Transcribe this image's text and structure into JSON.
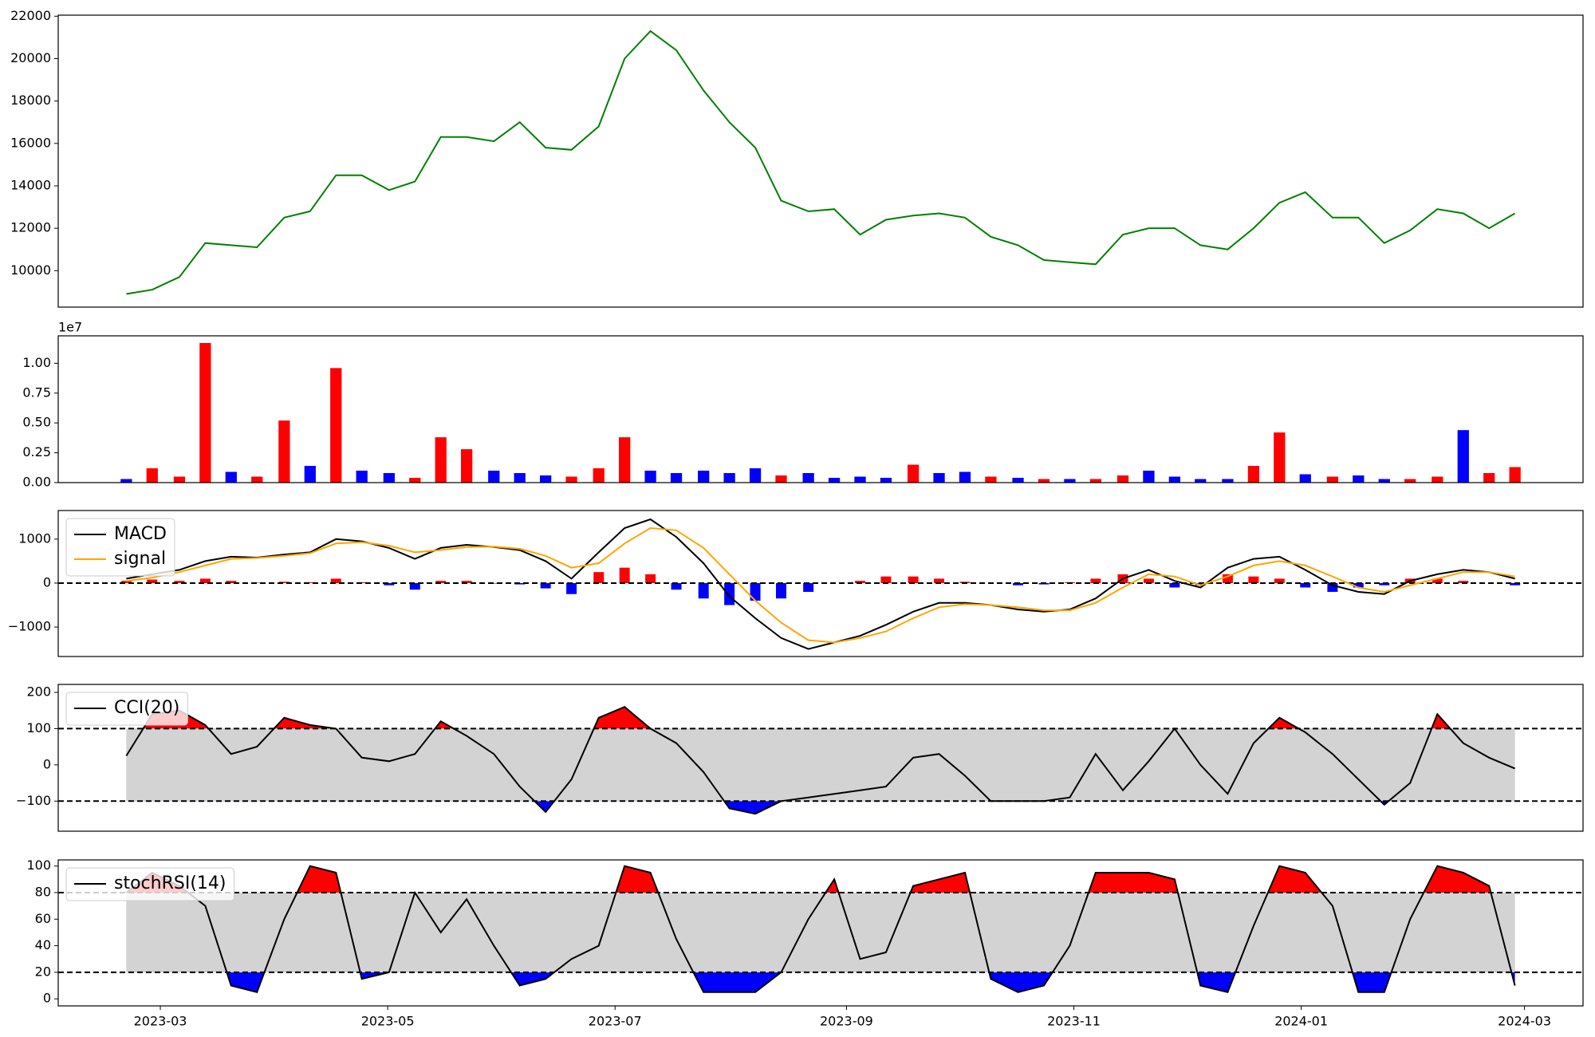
{
  "chart_data": [
    {
      "type": "line",
      "color": "green",
      "x": [
        2023.137,
        2023.156,
        2023.176,
        2023.195,
        2023.214,
        2023.233,
        2023.253,
        2023.272,
        2023.291,
        2023.31,
        2023.33,
        2023.349,
        2023.368,
        2023.387,
        2023.407,
        2023.426,
        2023.445,
        2023.464,
        2023.484,
        2023.503,
        2023.522,
        2023.541,
        2023.561,
        2023.58,
        2023.599,
        2023.618,
        2023.638,
        2023.657,
        2023.676,
        2023.695,
        2023.715,
        2023.734,
        2023.753,
        2023.772,
        2023.792,
        2023.811,
        2023.83,
        2023.849,
        2023.869,
        2023.888,
        2023.907,
        2023.926,
        2023.946,
        2023.965,
        2023.984,
        2024.003,
        2024.023,
        2024.042,
        2024.061,
        2024.08,
        2024.1,
        2024.119,
        2024.138,
        2024.157
      ],
      "values": [
        8900,
        9100,
        9700,
        11300,
        11200,
        11100,
        12500,
        12800,
        14500,
        14500,
        13800,
        14200,
        16300,
        16300,
        16100,
        17000,
        15800,
        15700,
        16800,
        20000,
        21300,
        20400,
        18500,
        17000,
        15800,
        13300,
        12800,
        12900,
        11700,
        12400,
        12600,
        12700,
        12500,
        11600,
        11200,
        10500,
        10400,
        10300,
        11700,
        12000,
        12000,
        11200,
        11000,
        12000,
        13200,
        13700,
        12500,
        12500,
        11300,
        11900,
        12900,
        12700,
        12000,
        12700
      ],
      "xlim": [
        2023.087,
        2024.207
      ],
      "ylim": [
        8280,
        22050
      ],
      "yticks": [
        10000,
        12000,
        14000,
        16000,
        18000,
        20000,
        22000
      ]
    },
    {
      "type": "bar",
      "offset_label": "1e7",
      "x": [
        2023.137,
        2023.156,
        2023.176,
        2023.195,
        2023.214,
        2023.233,
        2023.253,
        2023.272,
        2023.291,
        2023.31,
        2023.33,
        2023.349,
        2023.368,
        2023.387,
        2023.407,
        2023.426,
        2023.445,
        2023.464,
        2023.484,
        2023.503,
        2023.522,
        2023.541,
        2023.561,
        2023.58,
        2023.599,
        2023.618,
        2023.638,
        2023.657,
        2023.676,
        2023.695,
        2023.715,
        2023.734,
        2023.753,
        2023.772,
        2023.792,
        2023.811,
        2023.83,
        2023.849,
        2023.869,
        2023.888,
        2023.907,
        2023.926,
        2023.946,
        2023.965,
        2023.984,
        2024.003,
        2024.023,
        2024.042,
        2024.061,
        2024.08,
        2024.1,
        2024.119,
        2024.138,
        2024.157
      ],
      "values": [
        0.03,
        0.12,
        0.05,
        1.17,
        0.09,
        0.05,
        0.52,
        0.14,
        0.96,
        0.1,
        0.08,
        0.04,
        0.38,
        0.28,
        0.1,
        0.08,
        0.06,
        0.05,
        0.12,
        0.38,
        0.1,
        0.08,
        0.1,
        0.08,
        0.12,
        0.06,
        0.08,
        0.04,
        0.05,
        0.04,
        0.15,
        0.08,
        0.09,
        0.05,
        0.04,
        0.03,
        0.03,
        0.03,
        0.06,
        0.1,
        0.05,
        0.03,
        0.03,
        0.14,
        0.42,
        0.07,
        0.05,
        0.06,
        0.03,
        0.03,
        0.05,
        0.44,
        0.08,
        0.13
      ],
      "colors": [
        "blue",
        "red",
        "red",
        "red",
        "blue",
        "red",
        "red",
        "blue",
        "red",
        "blue",
        "blue",
        "red",
        "red",
        "red",
        "blue",
        "blue",
        "blue",
        "red",
        "red",
        "red",
        "blue",
        "blue",
        "blue",
        "blue",
        "blue",
        "red",
        "blue",
        "blue",
        "blue",
        "blue",
        "red",
        "blue",
        "blue",
        "red",
        "blue",
        "red",
        "blue",
        "red",
        "red",
        "blue",
        "blue",
        "blue",
        "blue",
        "red",
        "red",
        "blue",
        "red",
        "blue",
        "blue",
        "red",
        "red",
        "blue",
        "red",
        "red"
      ],
      "xlim": [
        2023.087,
        2024.207
      ],
      "ylim": [
        0,
        1.23
      ],
      "yticks": [
        {
          "value": 0,
          "label": "0.00"
        },
        {
          "value": 0.25,
          "label": "0.25"
        },
        {
          "value": 0.5,
          "label": "0.50"
        },
        {
          "value": 0.75,
          "label": "0.75"
        },
        {
          "value": 1,
          "label": "1.00"
        }
      ]
    },
    {
      "type": "macd",
      "legend": "upper left",
      "x": [
        2023.137,
        2023.156,
        2023.176,
        2023.195,
        2023.214,
        2023.233,
        2023.253,
        2023.272,
        2023.291,
        2023.31,
        2023.33,
        2023.349,
        2023.368,
        2023.387,
        2023.407,
        2023.426,
        2023.445,
        2023.464,
        2023.484,
        2023.503,
        2023.522,
        2023.541,
        2023.561,
        2023.58,
        2023.599,
        2023.618,
        2023.638,
        2023.657,
        2023.676,
        2023.695,
        2023.715,
        2023.734,
        2023.753,
        2023.772,
        2023.792,
        2023.811,
        2023.83,
        2023.849,
        2023.869,
        2023.888,
        2023.907,
        2023.926,
        2023.946,
        2023.965,
        2023.984,
        2024.003,
        2024.023,
        2024.042,
        2024.061,
        2024.08,
        2024.1,
        2024.119,
        2024.138,
        2024.157
      ],
      "series": [
        {
          "name": "MACD",
          "color": "black",
          "values": [
            100,
            200,
            300,
            500,
            600,
            580,
            650,
            700,
            1000,
            950,
            800,
            550,
            800,
            870,
            820,
            750,
            500,
            100,
            700,
            1250,
            1450,
            1050,
            450,
            -300,
            -800,
            -1250,
            -1500,
            -1350,
            -1200,
            -950,
            -650,
            -450,
            -450,
            -500,
            -600,
            -650,
            -600,
            -350,
            100,
            300,
            50,
            -100,
            350,
            550,
            600,
            300,
            -50,
            -200,
            -250,
            50,
            200,
            300,
            250,
            100
          ]
        },
        {
          "name": "signal",
          "color": "orange",
          "values": [
            50,
            120,
            250,
            400,
            550,
            570,
            620,
            680,
            900,
            930,
            850,
            700,
            750,
            820,
            830,
            780,
            620,
            350,
            450,
            900,
            1250,
            1200,
            800,
            200,
            -400,
            -900,
            -1300,
            -1350,
            -1250,
            -1100,
            -800,
            -550,
            -480,
            -500,
            -550,
            -620,
            -620,
            -450,
            -100,
            200,
            150,
            -50,
            150,
            400,
            500,
            400,
            150,
            -100,
            -200,
            -50,
            100,
            250,
            250,
            150
          ]
        }
      ],
      "histogram": {
        "positive_color": "red",
        "negative_color": "blue",
        "values": [
          50,
          80,
          50,
          100,
          50,
          10,
          30,
          20,
          100,
          20,
          -50,
          -150,
          50,
          50,
          -10,
          -30,
          -120,
          -250,
          250,
          350,
          200,
          -150,
          -350,
          -500,
          -400,
          -350,
          -200,
          0,
          50,
          150,
          150,
          100,
          30,
          0,
          -50,
          -30,
          20,
          100,
          200,
          100,
          -100,
          -50,
          200,
          150,
          100,
          -100,
          -200,
          -100,
          -50,
          100,
          100,
          50,
          0,
          -50
        ]
      },
      "hlines": [
        0
      ],
      "xlim": [
        2023.087,
        2024.207
      ],
      "ylim": [
        -1670,
        1650
      ],
      "yticks": [
        {
          "value": -1000,
          "label": "−1000"
        },
        0,
        1000
      ]
    },
    {
      "type": "oscillator",
      "legend": "upper left",
      "upper": 100,
      "lower": -100,
      "band_color": "lightgray",
      "above_color": "red",
      "below_color": "blue",
      "x": [
        2023.137,
        2023.156,
        2023.176,
        2023.195,
        2023.214,
        2023.233,
        2023.253,
        2023.272,
        2023.291,
        2023.31,
        2023.33,
        2023.349,
        2023.368,
        2023.387,
        2023.407,
        2023.426,
        2023.445,
        2023.464,
        2023.484,
        2023.503,
        2023.522,
        2023.541,
        2023.561,
        2023.58,
        2023.599,
        2023.618,
        2023.638,
        2023.657,
        2023.676,
        2023.695,
        2023.715,
        2023.734,
        2023.753,
        2023.772,
        2023.792,
        2023.811,
        2023.83,
        2023.849,
        2023.869,
        2023.888,
        2023.907,
        2023.926,
        2023.946,
        2023.965,
        2023.984,
        2024.003,
        2024.023,
        2024.042,
        2024.061,
        2024.08,
        2024.1,
        2024.119,
        2024.138,
        2024.157
      ],
      "series": [
        {
          "name": "CCI(20)",
          "color": "black",
          "values": [
            25,
            140,
            150,
            110,
            30,
            50,
            130,
            110,
            100,
            20,
            10,
            30,
            120,
            80,
            30,
            -60,
            -130,
            -40,
            130,
            160,
            100,
            60,
            -20,
            -120,
            -135,
            -100,
            -90,
            -80,
            -70,
            -60,
            20,
            30,
            -30,
            -100,
            -100,
            -100,
            -90,
            30,
            -70,
            10,
            100,
            0,
            -80,
            60,
            130,
            90,
            30,
            -40,
            -110,
            -50,
            140,
            60,
            20,
            -10
          ]
        }
      ],
      "xlim": [
        2023.087,
        2024.207
      ],
      "ylim": [
        -183,
        222
      ],
      "yticks": [
        {
          "value": -100,
          "label": "−100"
        },
        0,
        100,
        200
      ]
    },
    {
      "type": "oscillator",
      "legend": "upper left",
      "upper": 80,
      "lower": 20,
      "band_color": "lightgray",
      "above_color": "red",
      "below_color": "blue",
      "x": [
        2023.137,
        2023.156,
        2023.176,
        2023.195,
        2023.214,
        2023.233,
        2023.253,
        2023.272,
        2023.291,
        2023.31,
        2023.33,
        2023.349,
        2023.368,
        2023.387,
        2023.407,
        2023.426,
        2023.445,
        2023.464,
        2023.484,
        2023.503,
        2023.522,
        2023.541,
        2023.561,
        2023.58,
        2023.599,
        2023.618,
        2023.638,
        2023.657,
        2023.676,
        2023.695,
        2023.715,
        2023.734,
        2023.753,
        2023.772,
        2023.792,
        2023.811,
        2023.83,
        2023.849,
        2023.869,
        2023.888,
        2023.907,
        2023.926,
        2023.946,
        2023.965,
        2023.984,
        2024.003,
        2024.023,
        2024.042,
        2024.061,
        2024.08,
        2024.1,
        2024.119,
        2024.138,
        2024.157
      ],
      "series": [
        {
          "name": "stochRSI(14)",
          "color": "black",
          "values": [
            80,
            95,
            85,
            70,
            10,
            5,
            60,
            100,
            95,
            15,
            20,
            80,
            50,
            75,
            40,
            10,
            15,
            30,
            40,
            100,
            95,
            45,
            5,
            5,
            5,
            20,
            60,
            90,
            30,
            35,
            85,
            90,
            95,
            15,
            5,
            10,
            40,
            95,
            95,
            95,
            90,
            10,
            5,
            55,
            100,
            95,
            70,
            5,
            5,
            60,
            100,
            95,
            85,
            10
          ]
        }
      ],
      "xlim": [
        2023.087,
        2024.207
      ],
      "ylim": [
        -5.3,
        104.6
      ],
      "yticks": [
        0,
        20,
        40,
        60,
        80,
        100
      ],
      "xticks": [
        {
          "value": 2023.162,
          "label": "2023-03"
        },
        {
          "value": 2023.329,
          "label": "2023-05"
        },
        {
          "value": 2023.496,
          "label": "2023-07"
        },
        {
          "value": 2023.666,
          "label": "2023-09"
        },
        {
          "value": 2023.833,
          "label": "2023-11"
        },
        {
          "value": 2024.0,
          "label": "2024-01"
        },
        {
          "value": 2024.164,
          "label": "2024-03"
        }
      ]
    }
  ]
}
